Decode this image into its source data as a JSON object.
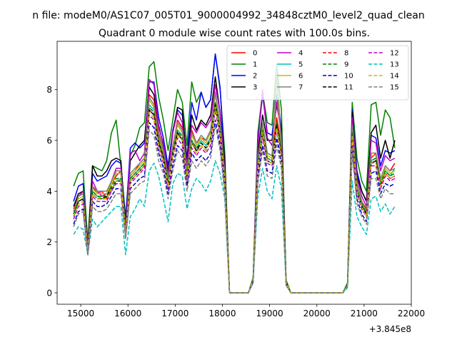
{
  "figure": {
    "suptitle": "n file: modeM0/AS1C07_005T01_9000004992_34848cztM0_level2_quad_clean",
    "title": "Quadrant 0 module wise count rates with 100.0s bins.",
    "x_offset_label": "+3.845e8"
  },
  "chart_data": {
    "type": "line",
    "title": "Quadrant 0 module wise count rates with 100.0s bins.",
    "xlabel": "",
    "ylabel": "",
    "x_offset": 384500000,
    "xlim": [
      14500,
      22000
    ],
    "ylim": [
      -0.45,
      9.9
    ],
    "xticks": [
      15000,
      16000,
      17000,
      18000,
      19000,
      20000,
      21000,
      22000
    ],
    "xtick_labels": [
      "15000",
      "16000",
      "17000",
      "18000",
      "19000",
      "20000",
      "21000",
      "22000"
    ],
    "yticks": [
      0,
      2,
      4,
      6,
      8
    ],
    "ytick_labels": [
      "0",
      "2",
      "4",
      "6",
      "8"
    ],
    "grid": false,
    "legend": {
      "location": "top-right",
      "columns": 4
    },
    "x": [
      14850,
      14950,
      15050,
      15150,
      15250,
      15350,
      15450,
      15550,
      15650,
      15750,
      15850,
      15950,
      16050,
      16150,
      16250,
      16350,
      16450,
      16550,
      16650,
      16750,
      16850,
      16950,
      17050,
      17150,
      17250,
      17350,
      17450,
      17550,
      17650,
      17750,
      17850,
      17950,
      18050,
      18150,
      18250,
      18350,
      18450,
      18550,
      18650,
      18750,
      18850,
      18950,
      19050,
      19150,
      19250,
      19350,
      19450,
      19550,
      19650,
      19750,
      19850,
      19950,
      20050,
      20150,
      20250,
      20350,
      20450,
      20550,
      20650,
      20750,
      20850,
      20950,
      21050,
      21150,
      21250,
      21350,
      21450,
      21550,
      21650
    ],
    "series": [
      {
        "name": "0",
        "color": "#ff0000",
        "dash": "solid",
        "values": [
          3.3,
          3.8,
          3.9,
          1.9,
          4.2,
          3.9,
          4.0,
          3.7,
          4.3,
          4.6,
          4.8,
          2.5,
          4.6,
          4.8,
          5.1,
          5.3,
          7.8,
          7.6,
          6.3,
          5.6,
          4.4,
          5.7,
          6.8,
          6.5,
          4.8,
          6.4,
          5.9,
          6.1,
          6.0,
          6.4,
          7.9,
          6.6,
          4.6,
          0,
          0,
          0,
          0,
          0,
          0.5,
          5.2,
          6.6,
          5.5,
          5.4,
          6.9,
          5.8,
          0.4,
          0,
          0,
          0,
          0,
          0,
          0,
          0,
          0,
          0,
          0,
          0,
          0,
          0.3,
          6.6,
          4.3,
          3.6,
          3.3,
          5.3,
          5.5,
          4.4,
          5.0,
          4.8,
          5.1
        ]
      },
      {
        "name": "1",
        "color": "#008000",
        "dash": "solid",
        "values": [
          4.2,
          4.7,
          4.8,
          2.0,
          5.0,
          4.9,
          4.8,
          5.2,
          6.3,
          6.8,
          5.0,
          3.0,
          5.4,
          5.8,
          6.5,
          6.7,
          8.9,
          9.1,
          7.7,
          6.8,
          5.6,
          6.8,
          8.0,
          7.5,
          5.8,
          8.3,
          7.5,
          7.9,
          7.3,
          7.6,
          9.4,
          8.0,
          5.5,
          0,
          0,
          0,
          0,
          0,
          0.6,
          6.3,
          7.9,
          6.7,
          6.6,
          9.0,
          7.2,
          0.5,
          0,
          0,
          0,
          0,
          0,
          0,
          0,
          0,
          0,
          0,
          0,
          0,
          0.4,
          7.5,
          5.3,
          4.4,
          4.0,
          7.4,
          7.5,
          6.2,
          7.2,
          6.9,
          5.7
        ]
      },
      {
        "name": "2",
        "color": "#0000ff",
        "dash": "solid",
        "values": [
          3.6,
          4.2,
          4.3,
          1.7,
          4.7,
          4.4,
          4.5,
          4.6,
          5.0,
          5.2,
          5.1,
          2.8,
          5.7,
          5.9,
          5.7,
          5.9,
          8.3,
          8.3,
          6.9,
          6.1,
          5.0,
          6.4,
          7.2,
          7.0,
          5.3,
          7.5,
          6.8,
          7.9,
          7.3,
          7.6,
          9.4,
          8.1,
          5.0,
          0,
          0,
          0,
          0,
          0,
          0.5,
          6.0,
          7.8,
          6.3,
          6.2,
          7.8,
          6.5,
          0.4,
          0,
          0,
          0,
          0,
          0,
          0,
          0,
          0,
          0,
          0,
          0,
          0,
          0.3,
          7.2,
          4.8,
          4.0,
          3.6,
          6.2,
          6.1,
          5.0,
          5.6,
          5.5,
          5.6
        ]
      },
      {
        "name": "3",
        "color": "#000000",
        "dash": "solid",
        "values": [
          3.4,
          3.9,
          4.0,
          1.8,
          5.0,
          4.6,
          4.6,
          4.8,
          5.2,
          5.3,
          5.2,
          2.6,
          5.2,
          5.5,
          5.8,
          6.0,
          8.1,
          7.8,
          6.6,
          5.8,
          4.8,
          6.3,
          7.3,
          7.2,
          5.1,
          7.0,
          6.4,
          6.8,
          6.6,
          7.0,
          8.5,
          7.1,
          5.2,
          0,
          0,
          0,
          0,
          0,
          0.5,
          5.5,
          7.0,
          6.0,
          6.0,
          7.4,
          6.4,
          0.4,
          0,
          0,
          0,
          0,
          0,
          0,
          0,
          0,
          0,
          0,
          0,
          0,
          0.3,
          7.1,
          4.6,
          4.0,
          3.6,
          6.3,
          6.6,
          5.3,
          6.0,
          5.3,
          6.0
        ]
      },
      {
        "name": "4",
        "color": "#bf00bf",
        "dash": "solid",
        "values": [
          3.2,
          3.8,
          4.0,
          1.7,
          4.4,
          4.0,
          3.8,
          3.9,
          4.4,
          4.9,
          4.9,
          2.4,
          5.5,
          5.6,
          5.2,
          5.5,
          8.4,
          8.2,
          6.5,
          5.9,
          4.6,
          6.3,
          7.1,
          6.7,
          5.0,
          6.6,
          6.3,
          6.7,
          6.5,
          6.8,
          8.2,
          7.1,
          4.8,
          0,
          0,
          0,
          0,
          0,
          0.5,
          5.8,
          8.0,
          6.1,
          5.8,
          7.5,
          6.2,
          0.4,
          0,
          0,
          0,
          0,
          0,
          0,
          0,
          0,
          0,
          0,
          0,
          0,
          0.3,
          6.9,
          4.5,
          3.8,
          3.4,
          6.0,
          5.9,
          4.8,
          5.4,
          5.2,
          5.3
        ]
      },
      {
        "name": "5",
        "color": "#00bfbf",
        "dash": "solid",
        "values": [
          3.0,
          3.6,
          3.7,
          1.6,
          4.0,
          3.8,
          3.7,
          3.8,
          4.0,
          4.4,
          4.5,
          2.3,
          4.5,
          4.7,
          4.9,
          5.1,
          7.4,
          7.2,
          6.0,
          5.4,
          4.3,
          5.6,
          6.4,
          6.2,
          4.6,
          6.0,
          5.7,
          6.0,
          5.8,
          6.1,
          7.5,
          6.5,
          4.5,
          0,
          0,
          0,
          0,
          0,
          0.5,
          5.0,
          6.4,
          5.3,
          5.2,
          9.0,
          5.6,
          0.4,
          0,
          0,
          0,
          0,
          0,
          0,
          0,
          0,
          0,
          0,
          0,
          0,
          0.3,
          6.4,
          4.1,
          3.5,
          3.1,
          5.2,
          5.3,
          4.3,
          4.8,
          4.6,
          4.9
        ]
      },
      {
        "name": "6",
        "color": "#bfbf00",
        "dash": "solid",
        "values": [
          3.1,
          3.7,
          3.8,
          1.6,
          4.1,
          3.9,
          3.9,
          3.9,
          4.3,
          4.7,
          4.7,
          2.4,
          4.6,
          4.8,
          5.0,
          5.2,
          7.6,
          7.3,
          6.1,
          5.5,
          4.4,
          5.7,
          6.6,
          6.3,
          4.7,
          6.2,
          5.8,
          6.1,
          5.9,
          6.3,
          7.8,
          6.6,
          4.6,
          0,
          0,
          0,
          0,
          0,
          0.5,
          5.1,
          6.6,
          5.4,
          5.3,
          8.3,
          5.7,
          0.4,
          0,
          0,
          0,
          0,
          0,
          0,
          0,
          0,
          0,
          0,
          0,
          0,
          0.3,
          6.5,
          4.2,
          3.6,
          3.2,
          5.4,
          5.4,
          4.4,
          4.9,
          4.7,
          4.8
        ]
      },
      {
        "name": "7",
        "color": "#808080",
        "dash": "solid",
        "values": [
          3.2,
          3.8,
          3.9,
          1.7,
          4.2,
          4.0,
          4.0,
          4.0,
          4.4,
          4.8,
          4.8,
          2.5,
          4.7,
          4.9,
          5.1,
          5.3,
          7.7,
          7.4,
          6.2,
          5.6,
          4.5,
          5.8,
          6.7,
          6.4,
          4.8,
          6.3,
          5.9,
          6.2,
          6.0,
          6.4,
          7.9,
          6.7,
          4.7,
          0,
          0,
          0,
          0,
          0,
          0.5,
          5.2,
          6.7,
          5.5,
          5.4,
          8.7,
          5.8,
          0.4,
          0,
          0,
          0,
          0,
          0,
          0,
          0,
          0,
          0,
          0,
          0,
          0,
          0.3,
          6.6,
          4.3,
          3.6,
          3.2,
          5.5,
          5.5,
          4.5,
          5.0,
          4.8,
          4.9
        ]
      },
      {
        "name": "8",
        "color": "#ff0000",
        "dash": "dashed",
        "values": [
          3.0,
          3.5,
          3.6,
          1.6,
          3.9,
          3.7,
          3.7,
          3.7,
          4.1,
          4.4,
          4.4,
          2.3,
          4.4,
          4.6,
          4.8,
          5.0,
          7.2,
          7.0,
          5.9,
          5.3,
          4.2,
          5.4,
          6.3,
          6.0,
          4.5,
          5.9,
          5.6,
          5.8,
          5.6,
          6.0,
          7.4,
          6.3,
          4.4,
          0,
          0,
          0,
          0,
          0,
          0.5,
          4.9,
          6.3,
          5.2,
          5.1,
          6.6,
          5.5,
          0.4,
          0,
          0,
          0,
          0,
          0,
          0,
          0,
          0,
          0,
          0,
          0,
          0,
          0.3,
          6.2,
          4.0,
          3.4,
          3.1,
          5.1,
          5.2,
          4.2,
          4.7,
          4.5,
          4.6
        ]
      },
      {
        "name": "9",
        "color": "#008000",
        "dash": "dashed",
        "values": [
          3.1,
          3.6,
          3.7,
          1.6,
          4.0,
          3.8,
          3.8,
          3.8,
          4.2,
          4.5,
          4.5,
          2.4,
          4.5,
          4.7,
          4.9,
          5.1,
          7.3,
          7.1,
          6.0,
          5.4,
          4.3,
          5.5,
          6.4,
          6.1,
          4.6,
          6.0,
          5.7,
          5.9,
          5.7,
          6.1,
          7.5,
          6.4,
          4.5,
          0,
          0,
          0,
          0,
          0,
          0.5,
          5.0,
          6.4,
          5.3,
          5.2,
          6.7,
          5.6,
          0.4,
          0,
          0,
          0,
          0,
          0,
          0,
          0,
          0,
          0,
          0,
          0,
          0,
          0.3,
          6.3,
          4.1,
          3.5,
          3.1,
          5.2,
          5.3,
          4.3,
          4.8,
          4.6,
          4.7
        ]
      },
      {
        "name": "10",
        "color": "#0000bf",
        "dash": "dashed",
        "values": [
          2.7,
          3.2,
          3.3,
          1.5,
          3.6,
          3.4,
          3.4,
          3.5,
          3.8,
          4.1,
          4.1,
          2.2,
          4.1,
          4.3,
          4.5,
          4.6,
          6.7,
          6.5,
          5.5,
          4.9,
          3.9,
          5.0,
          5.8,
          5.6,
          4.2,
          5.5,
          5.2,
          5.4,
          5.2,
          5.5,
          6.8,
          5.8,
          4.1,
          0,
          0,
          0,
          0,
          0,
          0.4,
          4.5,
          5.8,
          4.8,
          4.7,
          6.1,
          5.1,
          0.3,
          0,
          0,
          0,
          0,
          0,
          0,
          0,
          0,
          0,
          0,
          0,
          0,
          0.3,
          5.7,
          3.7,
          3.1,
          2.8,
          4.7,
          4.8,
          3.9,
          4.3,
          4.2,
          4.3
        ]
      },
      {
        "name": "11",
        "color": "#000000",
        "dash": "dashed",
        "values": [
          3.0,
          3.6,
          3.7,
          1.6,
          3.9,
          3.7,
          3.7,
          3.8,
          4.1,
          4.4,
          4.4,
          2.3,
          4.4,
          4.6,
          4.8,
          5.0,
          7.2,
          7.0,
          5.9,
          5.3,
          4.2,
          5.5,
          6.3,
          6.0,
          4.5,
          5.9,
          5.6,
          5.9,
          5.7,
          6.0,
          7.4,
          6.3,
          4.4,
          0,
          0,
          0,
          0,
          0,
          0.5,
          4.9,
          6.3,
          5.2,
          5.1,
          6.6,
          5.5,
          0.4,
          0,
          0,
          0,
          0,
          0,
          0,
          0,
          0,
          0,
          0,
          0,
          0,
          0.3,
          6.2,
          4.0,
          3.4,
          3.1,
          5.1,
          5.2,
          4.2,
          4.7,
          4.5,
          4.6
        ]
      },
      {
        "name": "12",
        "color": "#bf00bf",
        "dash": "dashed",
        "values": [
          2.9,
          3.4,
          3.5,
          1.6,
          3.8,
          3.6,
          3.6,
          3.6,
          4.0,
          4.3,
          4.3,
          2.3,
          4.3,
          4.5,
          4.7,
          4.9,
          7.0,
          6.8,
          5.7,
          5.1,
          4.1,
          5.3,
          6.1,
          5.8,
          4.4,
          5.7,
          5.4,
          5.7,
          5.5,
          5.8,
          7.2,
          6.1,
          4.3,
          0,
          0,
          0,
          0,
          0,
          0.5,
          4.8,
          6.1,
          5.1,
          5.0,
          6.4,
          5.3,
          0.4,
          0,
          0,
          0,
          0,
          0,
          0,
          0,
          0,
          0,
          0,
          0,
          0,
          0.3,
          6.0,
          3.9,
          3.3,
          3.0,
          5.0,
          5.0,
          4.1,
          4.6,
          4.4,
          4.5
        ]
      },
      {
        "name": "13",
        "color": "#00bfbf",
        "dash": "dashed",
        "values": [
          2.3,
          2.6,
          2.5,
          1.5,
          2.9,
          2.6,
          2.8,
          3.0,
          3.2,
          3.4,
          3.4,
          1.5,
          3.0,
          3.3,
          3.7,
          3.4,
          4.8,
          5.1,
          4.6,
          3.7,
          2.8,
          4.3,
          4.7,
          4.6,
          3.3,
          4.1,
          4.5,
          4.3,
          4.0,
          4.4,
          5.2,
          4.7,
          3.7,
          0,
          0,
          0,
          0,
          0,
          0.4,
          3.8,
          4.9,
          4.0,
          3.7,
          5.0,
          4.1,
          0.3,
          0,
          0,
          0,
          0,
          0,
          0,
          0,
          0,
          0,
          0,
          0,
          0,
          0.2,
          4.4,
          3.0,
          2.6,
          2.3,
          3.7,
          3.8,
          3.2,
          3.5,
          3.1,
          3.4
        ]
      },
      {
        "name": "14",
        "color": "#bfbf00",
        "dash": "dashed",
        "values": [
          3.0,
          3.5,
          3.6,
          1.6,
          3.9,
          3.7,
          3.7,
          3.7,
          4.1,
          4.4,
          4.4,
          2.3,
          4.4,
          4.6,
          4.8,
          5.0,
          7.1,
          6.9,
          5.8,
          5.2,
          4.2,
          5.4,
          6.2,
          6.0,
          4.5,
          5.9,
          5.5,
          5.8,
          5.6,
          6.0,
          7.3,
          6.3,
          4.4,
          0,
          0,
          0,
          0,
          0,
          0.5,
          4.9,
          6.3,
          5.2,
          5.1,
          6.5,
          5.4,
          0.4,
          0,
          0,
          0,
          0,
          0,
          0,
          0,
          0,
          0,
          0,
          0,
          0,
          0.3,
          6.2,
          4.0,
          3.4,
          3.0,
          5.1,
          5.1,
          4.2,
          4.7,
          4.5,
          4.6
        ]
      },
      {
        "name": "15",
        "color": "#808080",
        "dash": "dashed",
        "values": [
          2.6,
          3.1,
          3.2,
          1.5,
          3.4,
          3.2,
          3.2,
          3.3,
          3.6,
          3.9,
          3.9,
          2.1,
          3.9,
          4.1,
          4.3,
          4.4,
          6.4,
          6.2,
          5.2,
          4.7,
          3.7,
          4.8,
          5.6,
          5.3,
          4.0,
          5.2,
          4.9,
          5.2,
          5.0,
          5.3,
          6.6,
          5.6,
          3.9,
          0,
          0,
          0,
          0,
          0,
          0.4,
          4.3,
          5.6,
          4.6,
          4.5,
          5.8,
          4.9,
          0.3,
          0,
          0,
          0,
          0,
          0,
          0,
          0,
          0,
          0,
          0,
          0,
          0,
          0.3,
          5.5,
          3.5,
          3.0,
          2.7,
          4.5,
          4.5,
          3.7,
          4.1,
          3.9,
          3.9
        ]
      }
    ]
  }
}
